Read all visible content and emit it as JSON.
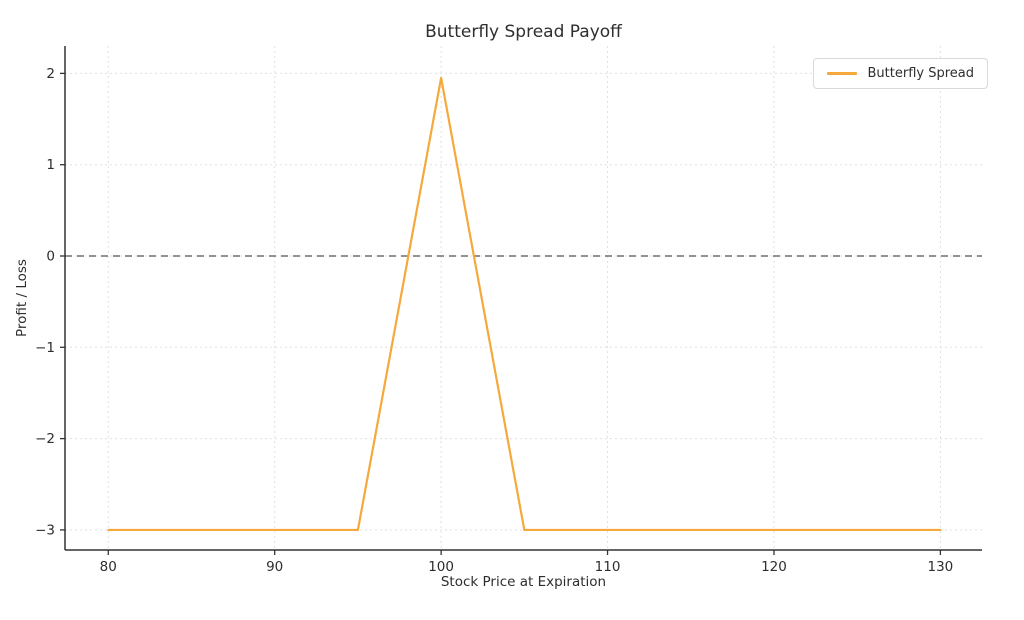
{
  "figure": {
    "background": "#ffffff"
  },
  "chart_data": {
    "type": "line",
    "title": "Butterfly Spread Payoff",
    "xlabel": "Stock Price at Expiration",
    "ylabel": "Profit / Loss",
    "xlim": [
      77.4,
      132.5
    ],
    "ylim": [
      -3.22,
      2.3
    ],
    "x_ticks": [
      80,
      90,
      100,
      110,
      120,
      130
    ],
    "y_ticks": [
      2,
      1,
      0,
      -1,
      -2,
      -3
    ],
    "grid": "dashed-light",
    "spines": [
      "left",
      "bottom"
    ],
    "legend": {
      "position": "upper-right",
      "entries": [
        {
          "label": "Butterfly Spread",
          "color": "#F5A93C"
        }
      ]
    },
    "series": [
      {
        "name": "Butterfly Spread",
        "color": "#F5A93C",
        "line_width": 2.2,
        "points": [
          [
            80,
            -3
          ],
          [
            95,
            -3
          ],
          [
            100,
            1.95
          ],
          [
            105,
            -3
          ],
          [
            130,
            -3
          ]
        ]
      }
    ],
    "reference_lines": [
      {
        "axis": "y",
        "value": 0,
        "style": "dashed",
        "color": "#6e6e6e"
      }
    ],
    "colors": {
      "grid": "#e0e0e0",
      "spine": "#333333",
      "text": "#2e2e2e",
      "zero_line": "#6e6e6e",
      "series": "#F5A93C"
    }
  }
}
